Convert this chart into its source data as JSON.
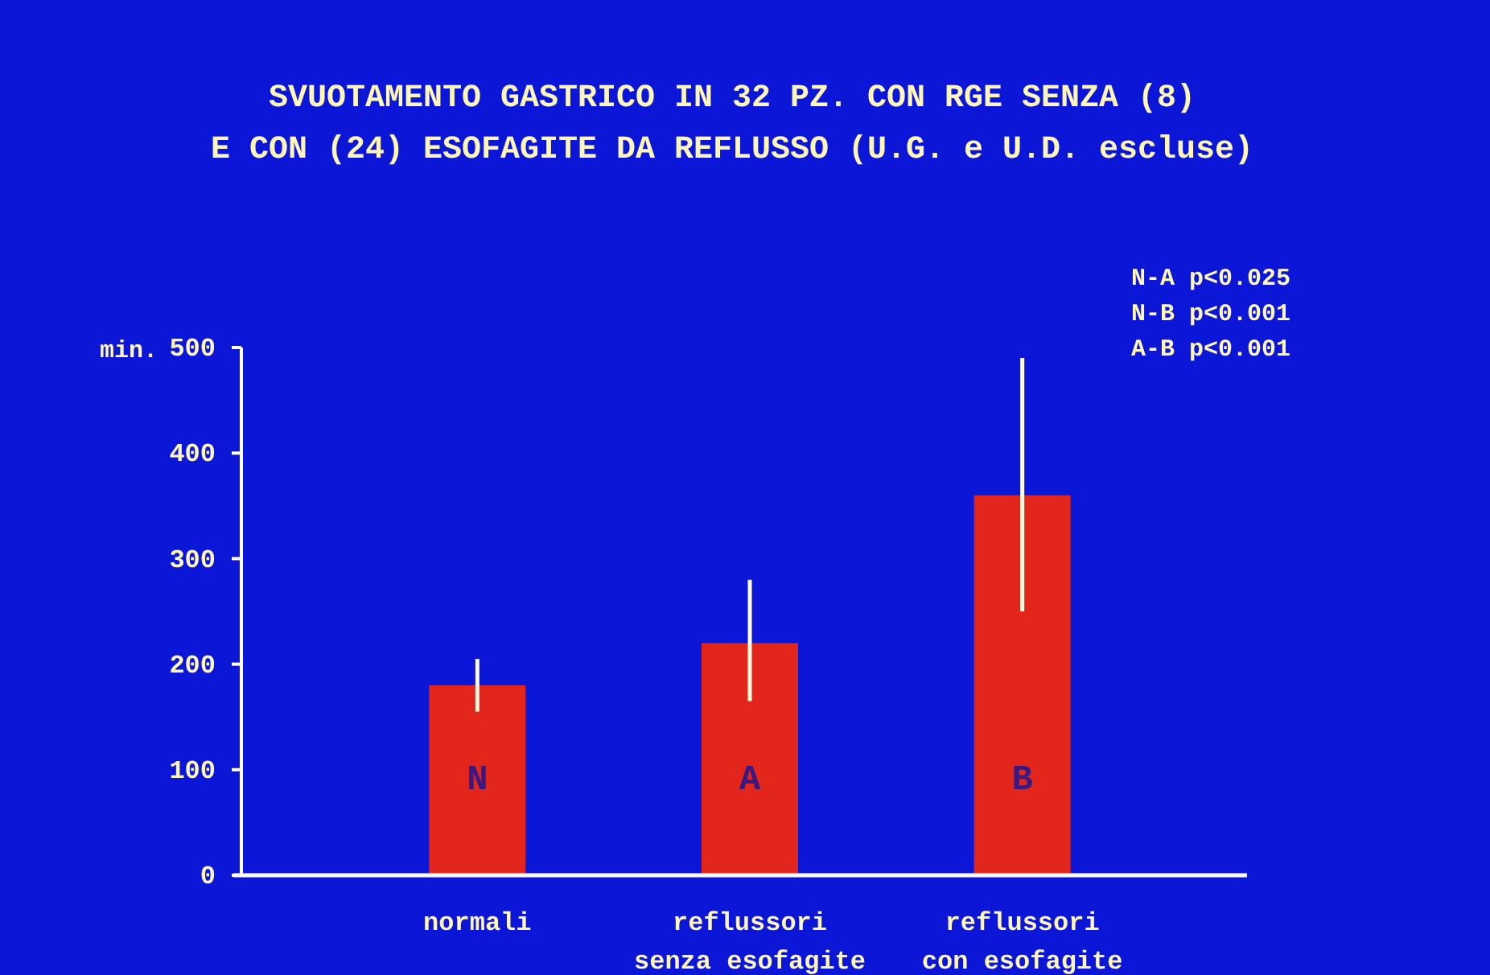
{
  "chart_data": {
    "type": "bar",
    "title": "SVUOTAMENTO GASTRICO IN 32 PZ. CON RGE SENZA (8)\nE CON (24) ESOFAGITE DA REFLUSSO (U.G. e U.D. escluse)",
    "ylabel": "min.",
    "categories": [
      "normali",
      "reflussori senza esofagite",
      "reflussori con esofagite"
    ],
    "values": [
      180,
      220,
      360
    ],
    "color": "#e2261c",
    "errors": [
      [
        155,
        205
      ],
      [
        165,
        280
      ],
      [
        250,
        490
      ]
    ],
    "ylim": [
      0,
      500
    ],
    "yticks": [
      0,
      100,
      200,
      300,
      400,
      500
    ],
    "grid": false,
    "annotations": [
      "N",
      "A",
      "B",
      "N-A p<0.025",
      "N-B p<0.001",
      "A-B p<0.001"
    ]
  }
}
